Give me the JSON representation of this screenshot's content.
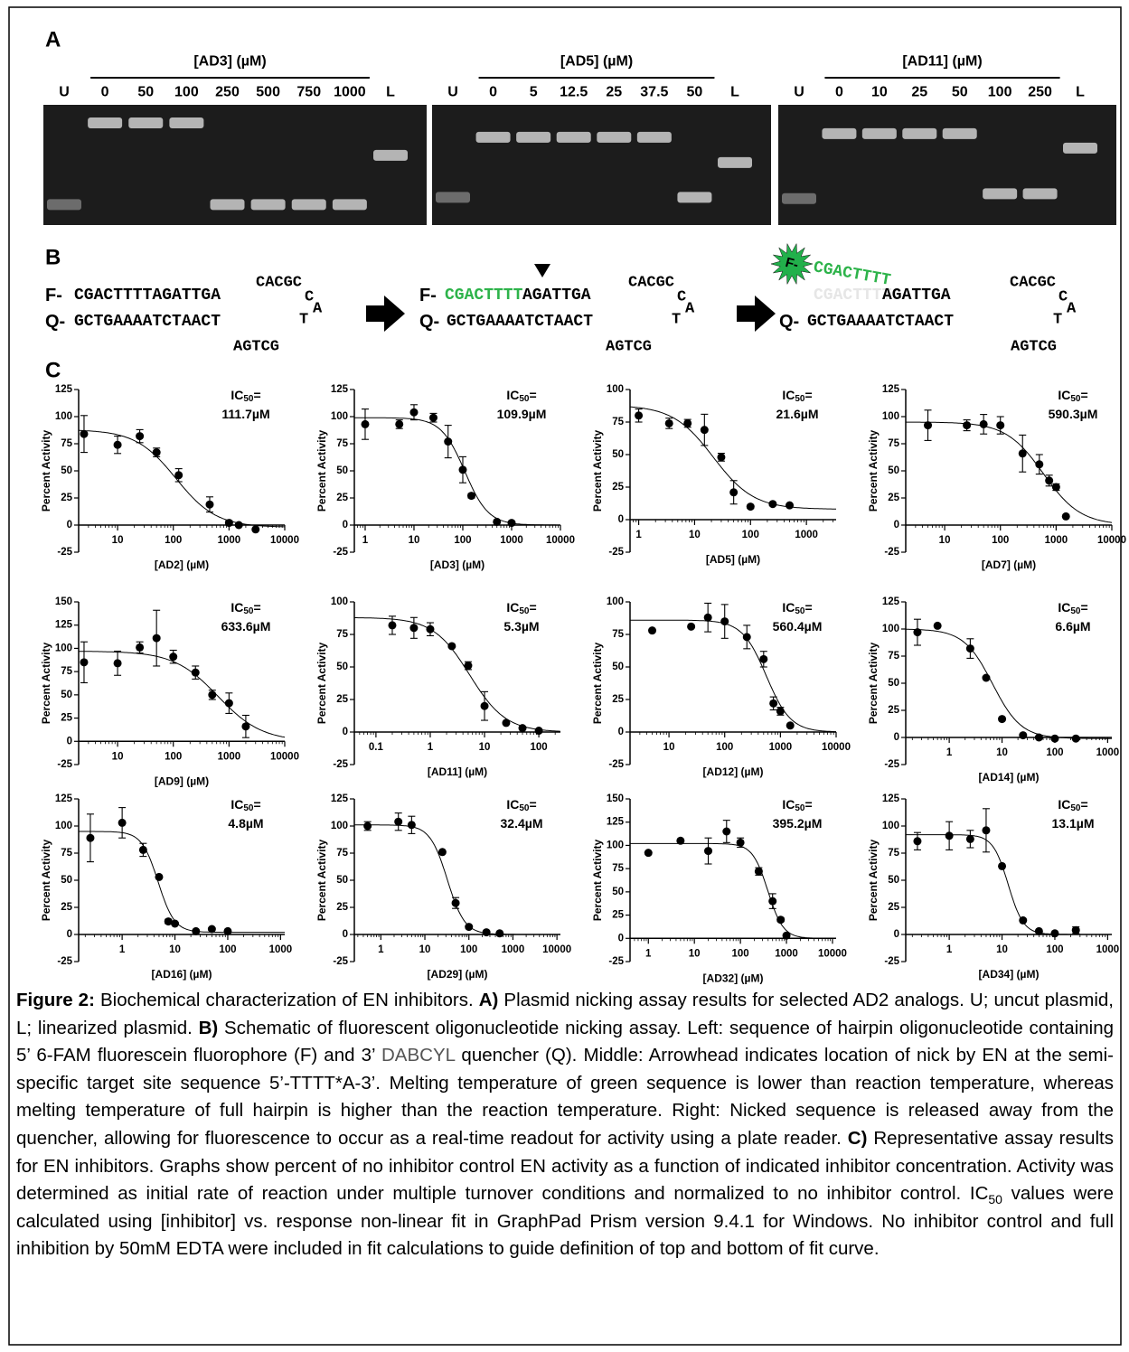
{
  "panel_a": {
    "label": "A",
    "gels": [
      {
        "title": "[AD3] (µM)",
        "lanes": [
          "U",
          "0",
          "50",
          "100",
          "250",
          "500",
          "750",
          "1000",
          "L"
        ]
      },
      {
        "title": "[AD5] (µM)",
        "lanes": [
          "U",
          "0",
          "5",
          "12.5",
          "25",
          "37.5",
          "50",
          "L"
        ]
      },
      {
        "title": "[AD11] (µM)",
        "lanes": [
          "U",
          "0",
          "10",
          "25",
          "50",
          "100",
          "250",
          "L"
        ]
      }
    ]
  },
  "panel_b": {
    "label": "B",
    "left": {
      "fluor": "F-",
      "top_strand": "CGACTTTTAGATTGA",
      "loop_top": "CACGC",
      "loop_c": "C",
      "loop_a": "A",
      "loop_t": "T",
      "quencher": "Q-",
      "bottom_strand": "GCTGAAAATCTAACT",
      "loop_bottom": "AGTCG"
    },
    "middle": {
      "fluor": "F-",
      "top_green": "CGACTTTT",
      "top_rest": "AGATTGA",
      "loop_top": "CACGC",
      "loop_c": "C",
      "loop_a": "A",
      "loop_t": "T",
      "quencher": "Q-",
      "bottom_strand": "GCTGAAAATCTAACT",
      "loop_bottom": "AGTCG"
    },
    "right": {
      "fluor": "F-",
      "released": "CGACTTTT",
      "ghost": "CGACTTTT",
      "top_rest": "AGATTGA",
      "loop_top": "CACGC",
      "loop_c": "C",
      "loop_a": "A",
      "loop_t": "T",
      "quencher": "Q-",
      "bottom_strand": "GCTGAAAATCTAACT",
      "loop_bottom": "AGTCG"
    }
  },
  "panel_c": {
    "label": "C"
  },
  "chart_data": [
    {
      "type": "scatter",
      "x_label": "[AD2] (µM)",
      "y_label": "Percent Activity",
      "ic50_prefix": "IC",
      "ic50_sub": "50",
      "ic50_eq": "=",
      "ic50": {
        "value": 111.7,
        "label": "111.7µM"
      },
      "x": [
        2.5,
        10,
        25,
        50,
        125,
        450,
        1000,
        1500,
        3000
      ],
      "values": [
        84,
        74,
        82,
        67,
        46,
        19,
        2,
        0,
        -4
      ],
      "errors": [
        17,
        8,
        6,
        4,
        6,
        7,
        2,
        1,
        1
      ],
      "fit": {
        "top": 88,
        "bottom": -2,
        "hill": 1.2
      },
      "log_x": true,
      "xlim": [
        2,
        10000
      ],
      "ylim": [
        -25,
        125
      ],
      "xticks": [
        10,
        100,
        1000,
        10000
      ],
      "yticks": [
        -25,
        0,
        25,
        50,
        75,
        100,
        125
      ],
      "color": "#000000"
    },
    {
      "type": "scatter",
      "x_label": "[AD3] (µM)",
      "y_label": "Percent Activity",
      "ic50_prefix": "IC",
      "ic50_sub": "50",
      "ic50_eq": "=",
      "ic50": {
        "value": 109.9,
        "label": "109.9µM"
      },
      "x": [
        1,
        5,
        10,
        25,
        50,
        100,
        150,
        500,
        1000
      ],
      "values": [
        93,
        93,
        104,
        99,
        77,
        51,
        27,
        3,
        2
      ],
      "errors": [
        14,
        4,
        7,
        4,
        15,
        12,
        2,
        1,
        1
      ],
      "fit": {
        "top": 99,
        "bottom": 0,
        "hill": 1.8
      },
      "log_x": true,
      "xlim": [
        0.6,
        10000
      ],
      "ylim": [
        -25,
        125
      ],
      "xticks": [
        1,
        10,
        100,
        1000,
        10000
      ],
      "yticks": [
        -25,
        0,
        25,
        50,
        75,
        100,
        125
      ],
      "color": "#000000"
    },
    {
      "type": "scatter",
      "x_label": "[AD5] (µM)",
      "y_label": "Percent Activity",
      "ic50_prefix": "IC",
      "ic50_sub": "50",
      "ic50_eq": "=",
      "ic50": {
        "value": 21.6,
        "label": "21.6µM"
      },
      "x": [
        1,
        3.5,
        7.5,
        15,
        30,
        50,
        100,
        250,
        500
      ],
      "values": [
        80,
        74,
        74,
        69,
        48,
        21,
        10,
        12,
        11
      ],
      "errors": [
        5,
        4,
        3,
        12,
        3,
        9,
        1,
        1,
        1
      ],
      "fit": {
        "top": 88,
        "bottom": 8,
        "hill": 1.2
      },
      "log_x": true,
      "xlim": [
        0.7,
        3400
      ],
      "ylim": [
        -25,
        100
      ],
      "xticks": [
        1,
        10,
        100,
        1000
      ],
      "yticks": [
        -25,
        0,
        25,
        50,
        75,
        100
      ],
      "color": "#000000"
    },
    {
      "type": "scatter",
      "x_label": "[AD7] (µM)",
      "y_label": "Percent Activity",
      "ic50_prefix": "IC",
      "ic50_sub": "50",
      "ic50_eq": "=",
      "ic50": {
        "value": 590.3,
        "label": "590.3µM"
      },
      "x": [
        5,
        25,
        50,
        100,
        250,
        500,
        750,
        1000,
        1500
      ],
      "values": [
        92,
        92,
        93,
        92,
        66,
        56,
        41,
        35,
        8
      ],
      "errors": [
        14,
        5,
        9,
        8,
        17,
        9,
        5,
        3,
        1
      ],
      "fit": {
        "top": 95,
        "bottom": 0,
        "hill": 1.3
      },
      "log_x": true,
      "xlim": [
        2,
        10000
      ],
      "ylim": [
        -25,
        125
      ],
      "xticks": [
        10,
        100,
        1000,
        10000
      ],
      "yticks": [
        -25,
        0,
        25,
        50,
        75,
        100,
        125
      ],
      "color": "#000000"
    },
    {
      "type": "scatter",
      "x_label": "[AD9] (µM)",
      "y_label": "Percent Activity",
      "ic50_prefix": "IC",
      "ic50_sub": "50",
      "ic50_eq": "=",
      "ic50": {
        "value": 633.6,
        "label": "633.6µM"
      },
      "x": [
        2.5,
        10,
        25,
        50,
        100,
        250,
        500,
        1000,
        2000
      ],
      "values": [
        85,
        84,
        101,
        111,
        91,
        74,
        50,
        41,
        16
      ],
      "errors": [
        22,
        13,
        6,
        30,
        7,
        7,
        5,
        11,
        12
      ],
      "fit": {
        "top": 97,
        "bottom": 0,
        "hill": 1.1
      },
      "log_x": true,
      "xlim": [
        2,
        10000
      ],
      "ylim": [
        -25,
        150
      ],
      "xticks": [
        10,
        100,
        1000,
        10000
      ],
      "yticks": [
        -25,
        0,
        25,
        50,
        75,
        100,
        125,
        150
      ],
      "color": "#000000"
    },
    {
      "type": "scatter",
      "x_label": "[AD11] (µM)",
      "y_label": "Percent Activity",
      "ic50_prefix": "IC",
      "ic50_sub": "50",
      "ic50_eq": "=",
      "ic50": {
        "value": 5.3,
        "label": "5.3µM"
      },
      "x": [
        0.2,
        0.5,
        1,
        2.5,
        5,
        10,
        25,
        50,
        100
      ],
      "values": [
        82,
        80,
        79,
        66,
        51,
        20,
        7,
        3,
        1
      ],
      "errors": [
        7,
        8,
        5,
        1,
        3,
        11,
        1,
        1,
        1
      ],
      "fit": {
        "top": 88,
        "bottom": 0,
        "hill": 1.3
      },
      "log_x": true,
      "xlim": [
        0.04,
        250
      ],
      "ylim": [
        -25,
        100
      ],
      "xticks": [
        0.1,
        1,
        10,
        100
      ],
      "yticks": [
        -25,
        0,
        25,
        50,
        75,
        100
      ],
      "color": "#000000"
    },
    {
      "type": "scatter",
      "x_label": "[AD12] (µM)",
      "y_label": "Percent Activity",
      "ic50_prefix": "IC",
      "ic50_sub": "50",
      "ic50_eq": "=",
      "ic50": {
        "value": 560.4,
        "label": "560.4µM"
      },
      "x": [
        5,
        25,
        50,
        100,
        250,
        500,
        750,
        1000,
        1500
      ],
      "values": [
        78,
        81,
        88,
        85,
        73,
        56,
        22,
        16,
        5
      ],
      "errors": [
        1,
        1,
        11,
        13,
        9,
        6,
        5,
        3,
        1
      ],
      "fit": {
        "top": 86,
        "bottom": 0,
        "hill": 2
      },
      "log_x": true,
      "xlim": [
        2,
        10000
      ],
      "ylim": [
        -25,
        100
      ],
      "xticks": [
        10,
        100,
        1000,
        10000
      ],
      "yticks": [
        -25,
        0,
        25,
        50,
        75,
        100
      ],
      "color": "#000000"
    },
    {
      "type": "scatter",
      "x_label": "[AD14] (µM)",
      "y_label": "Percent Activity",
      "ic50_prefix": "IC",
      "ic50_sub": "50",
      "ic50_eq": "=",
      "ic50": {
        "value": 6.6,
        "label": "6.6µM"
      },
      "x": [
        0.25,
        0.6,
        2.5,
        5,
        10,
        25,
        50,
        100,
        250
      ],
      "values": [
        97,
        103,
        82,
        55,
        17,
        2,
        0,
        -1,
        -1
      ],
      "errors": [
        12,
        1,
        9,
        1,
        1,
        1,
        1,
        1,
        1
      ],
      "fit": {
        "top": 100,
        "bottom": -1,
        "hill": 1.6
      },
      "log_x": true,
      "xlim": [
        0.15,
        1200
      ],
      "ylim": [
        -25,
        125
      ],
      "xticks": [
        1,
        10,
        100,
        1000
      ],
      "yticks": [
        -25,
        0,
        25,
        50,
        75,
        100,
        125
      ],
      "color": "#000000"
    },
    {
      "type": "scatter",
      "x_label": "[AD16] (µM)",
      "y_label": "Percent Activity",
      "ic50_prefix": "IC",
      "ic50_sub": "50",
      "ic50_eq": "=",
      "ic50": {
        "value": 4.8,
        "label": "4.8µM"
      },
      "x": [
        0.25,
        1,
        2.5,
        5,
        7.5,
        10,
        25,
        50,
        100
      ],
      "values": [
        89,
        103,
        78,
        53,
        12,
        10,
        3,
        5,
        3
      ],
      "errors": [
        22,
        14,
        6,
        1,
        2,
        1,
        1,
        1,
        1
      ],
      "fit": {
        "top": 95,
        "bottom": 2,
        "hill": 2.8
      },
      "log_x": true,
      "xlim": [
        0.15,
        1200
      ],
      "ylim": [
        -25,
        125
      ],
      "xticks": [
        1,
        10,
        100,
        1000
      ],
      "yticks": [
        -25,
        0,
        25,
        50,
        75,
        100,
        125
      ],
      "color": "#000000"
    },
    {
      "type": "scatter",
      "x_label": "[AD29] (µM)",
      "y_label": "Percent Activity",
      "ic50_prefix": "IC",
      "ic50_sub": "50",
      "ic50_eq": "=",
      "ic50": {
        "value": 32.4,
        "label": "32.4µM"
      },
      "x": [
        0.5,
        2.5,
        5,
        25,
        50,
        100,
        250,
        500
      ],
      "values": [
        100,
        104,
        101,
        76,
        29,
        7,
        2,
        1
      ],
      "errors": [
        4,
        8,
        8,
        1,
        5,
        1,
        1,
        1
      ],
      "fit": {
        "top": 101,
        "bottom": 0,
        "hill": 2.2
      },
      "log_x": true,
      "xlim": [
        0.25,
        12000
      ],
      "ylim": [
        -25,
        125
      ],
      "xticks": [
        1,
        10,
        100,
        1000,
        10000
      ],
      "yticks": [
        -25,
        0,
        25,
        50,
        75,
        100,
        125
      ],
      "color": "#000000"
    },
    {
      "type": "scatter",
      "x_label": "[AD32] (µM)",
      "y_label": "Percent Activity",
      "ic50_prefix": "IC",
      "ic50_sub": "50",
      "ic50_eq": "=",
      "ic50": {
        "value": 395.2,
        "label": "395.2µM"
      },
      "x": [
        1,
        5,
        20,
        50,
        100,
        250,
        500,
        750,
        1000
      ],
      "values": [
        92,
        105,
        94,
        115,
        103,
        72,
        40,
        20,
        3
      ],
      "errors": [
        1,
        1,
        14,
        12,
        5,
        4,
        8,
        2,
        1
      ],
      "fit": {
        "top": 102,
        "bottom": 0,
        "hill": 2.6
      },
      "log_x": true,
      "xlim": [
        0.4,
        12000
      ],
      "ylim": [
        -25,
        150
      ],
      "xticks": [
        1,
        10,
        100,
        1000,
        10000
      ],
      "yticks": [
        -25,
        0,
        25,
        50,
        75,
        100,
        125,
        150
      ],
      "color": "#000000"
    },
    {
      "type": "scatter",
      "x_label": "[AD34] (µM)",
      "y_label": "Percent Activity",
      "ic50_prefix": "IC",
      "ic50_sub": "50",
      "ic50_eq": "=",
      "ic50": {
        "value": 13.1,
        "label": "13.1µM"
      },
      "x": [
        0.25,
        1,
        2.5,
        5,
        10,
        25,
        50,
        100,
        250
      ],
      "values": [
        86,
        91,
        88,
        96,
        63,
        13,
        3,
        1,
        4
      ],
      "errors": [
        8,
        13,
        8,
        20,
        1,
        1,
        1,
        1,
        3
      ],
      "fit": {
        "top": 92,
        "bottom": 0,
        "hill": 3
      },
      "log_x": true,
      "xlim": [
        0.15,
        1200
      ],
      "ylim": [
        -25,
        125
      ],
      "xticks": [
        1,
        10,
        100,
        1000
      ],
      "yticks": [
        -25,
        0,
        25,
        50,
        75,
        100,
        125
      ],
      "color": "#000000"
    }
  ],
  "caption": [
    {
      "text": "Figure 2:",
      "bold": true
    },
    {
      "text": " Biochemical characterization of EN inhibitors. "
    },
    {
      "text": "A)",
      "bold": true
    },
    {
      "text": " Plasmid nicking assay results for selected AD2 analogs. U; uncut plasmid, L; linearized plasmid. "
    },
    {
      "text": "B)",
      "bold": true
    },
    {
      "text": " Schematic of fluorescent oligonucleotide nicking assay. Left: sequence of hairpin oligonucleotide containing 5’ 6-FAM fluorescein fluorophore (F) and 3’ "
    },
    {
      "text": "DABCYL",
      "color": "#555555"
    },
    {
      "text": " quencher (Q). Middle: Arrowhead indicates location of nick by EN at the semi-specific target site sequence 5’-TTTT*A-3’. Melting temperature of green sequence is lower than reaction temperature, whereas melting temperature of full hairpin is higher than the reaction temperature. Right: Nicked sequence is released away from the quencher, allowing for fluorescence to occur as a real-time readout for activity using a plate reader. "
    },
    {
      "text": "C)",
      "bold": true
    },
    {
      "text": "  Representative assay results for EN inhibitors. Graphs show percent of no inhibitor control EN activity as a function of indicated inhibitor concentration. Activity was determined as initial rate of reaction under multiple turnover conditions and normalized to no inhibitor control. IC"
    },
    {
      "text": "50",
      "sub": true
    },
    {
      "text": " values were calculated using [inhibitor] vs. response non-linear fit in GraphPad Prism version 9.4.1 for Windows. No inhibitor control and full inhibition by 50mM EDTA were included in fit calculations to guide definition of top and bottom of fit curve."
    }
  ]
}
